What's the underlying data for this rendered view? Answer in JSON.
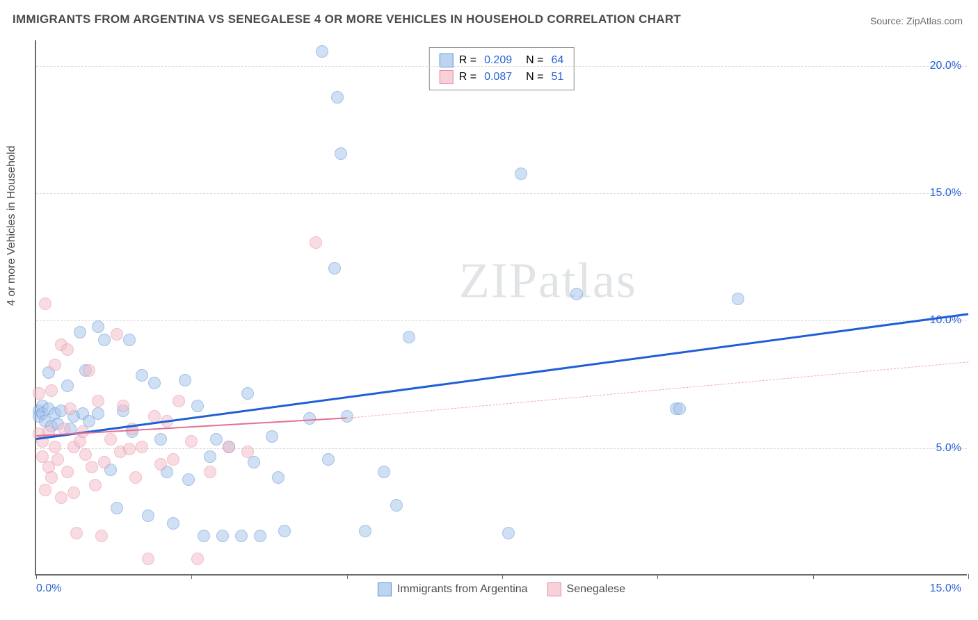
{
  "title": "IMMIGRANTS FROM ARGENTINA VS SENEGALESE 4 OR MORE VEHICLES IN HOUSEHOLD CORRELATION CHART",
  "source_label": "Source: ZipAtlas.com",
  "watermark": "ZIPatlas",
  "ylabel": "4 or more Vehicles in Household",
  "chart": {
    "type": "scatter",
    "background_color": "#ffffff",
    "grid_color": "#d8d8d8",
    "axis_color": "#6b6b6b",
    "text_color": "#4a4a4a",
    "tick_label_color": "#2962d9",
    "xlim": [
      0,
      15
    ],
    "ylim": [
      0,
      21
    ],
    "ytick_step": 5,
    "ytick_labels": [
      "5.0%",
      "10.0%",
      "15.0%",
      "20.0%"
    ],
    "xtick_positions": [
      0,
      2.5,
      5,
      7.5,
      10,
      12.5,
      15
    ],
    "xtick_labels_shown": {
      "left": "0.0%",
      "right": "15.0%"
    },
    "point_radius": 9,
    "point_opacity": 0.55,
    "series": [
      {
        "id": "argentina",
        "label": "Immigrants from Argentina",
        "color_fill": "#a8c5ec",
        "color_stroke": "#5a8fd6",
        "legend_swatch_fill": "#bcd4f0",
        "legend_swatch_border": "#5a8fd6",
        "r": "0.209",
        "n": "64",
        "trend": {
          "x1": 0,
          "y1": 5.4,
          "x2": 15,
          "y2": 10.3,
          "color": "#1e5fd6",
          "width": 3,
          "dashed": false
        },
        "points": [
          [
            0.05,
            6.4
          ],
          [
            0.05,
            6.2
          ],
          [
            0.1,
            6.6
          ],
          [
            0.1,
            6.3
          ],
          [
            0.15,
            6.0
          ],
          [
            0.2,
            7.9
          ],
          [
            0.2,
            6.5
          ],
          [
            0.25,
            5.8
          ],
          [
            0.3,
            6.3
          ],
          [
            0.35,
            5.9
          ],
          [
            0.4,
            6.4
          ],
          [
            0.5,
            7.4
          ],
          [
            0.55,
            5.7
          ],
          [
            0.6,
            6.2
          ],
          [
            0.7,
            9.5
          ],
          [
            0.75,
            6.3
          ],
          [
            0.8,
            8.0
          ],
          [
            0.85,
            6.0
          ],
          [
            1.0,
            9.7
          ],
          [
            1.0,
            6.3
          ],
          [
            1.1,
            9.2
          ],
          [
            1.2,
            4.1
          ],
          [
            1.3,
            2.6
          ],
          [
            1.4,
            6.4
          ],
          [
            1.5,
            9.2
          ],
          [
            1.55,
            5.6
          ],
          [
            1.7,
            7.8
          ],
          [
            1.8,
            2.3
          ],
          [
            1.9,
            7.5
          ],
          [
            2.0,
            5.3
          ],
          [
            2.1,
            4.0
          ],
          [
            2.2,
            2.0
          ],
          [
            2.4,
            7.6
          ],
          [
            2.45,
            3.7
          ],
          [
            2.6,
            6.6
          ],
          [
            2.7,
            1.5
          ],
          [
            2.8,
            4.6
          ],
          [
            2.9,
            5.3
          ],
          [
            3.0,
            1.5
          ],
          [
            3.1,
            5.0
          ],
          [
            3.3,
            1.5
          ],
          [
            3.4,
            7.1
          ],
          [
            3.5,
            4.4
          ],
          [
            3.6,
            1.5
          ],
          [
            3.8,
            5.4
          ],
          [
            3.9,
            3.8
          ],
          [
            4.0,
            1.7
          ],
          [
            4.4,
            6.1
          ],
          [
            4.6,
            20.5
          ],
          [
            4.7,
            4.5
          ],
          [
            4.8,
            12.0
          ],
          [
            4.85,
            18.7
          ],
          [
            4.9,
            16.5
          ],
          [
            5.0,
            6.2
          ],
          [
            5.3,
            1.7
          ],
          [
            5.6,
            4.0
          ],
          [
            5.8,
            2.7
          ],
          [
            6.0,
            9.3
          ],
          [
            7.6,
            1.6
          ],
          [
            7.8,
            15.7
          ],
          [
            8.7,
            11.0
          ],
          [
            10.3,
            6.5
          ],
          [
            10.35,
            6.5
          ],
          [
            11.3,
            10.8
          ]
        ]
      },
      {
        "id": "senegalese",
        "label": "Senegalese",
        "color_fill": "#f4c0cb",
        "color_stroke": "#e48aa0",
        "legend_swatch_fill": "#f7d0da",
        "legend_swatch_border": "#e48aa0",
        "r": "0.087",
        "n": "51",
        "trend": {
          "x1": 0,
          "y1": 5.5,
          "x2": 5.0,
          "y2": 6.2,
          "color": "#e36f91",
          "width": 2.5,
          "dashed": false,
          "ext_x2": 15,
          "ext_y2": 8.4,
          "ext_color": "#f0a8bb",
          "ext_dashed": true
        },
        "points": [
          [
            0.05,
            7.1
          ],
          [
            0.05,
            5.5
          ],
          [
            0.1,
            4.6
          ],
          [
            0.1,
            5.2
          ],
          [
            0.15,
            10.6
          ],
          [
            0.15,
            3.3
          ],
          [
            0.2,
            5.6
          ],
          [
            0.2,
            4.2
          ],
          [
            0.25,
            7.2
          ],
          [
            0.25,
            3.8
          ],
          [
            0.3,
            5.0
          ],
          [
            0.3,
            8.2
          ],
          [
            0.35,
            4.5
          ],
          [
            0.4,
            9.0
          ],
          [
            0.4,
            3.0
          ],
          [
            0.45,
            5.7
          ],
          [
            0.5,
            8.8
          ],
          [
            0.5,
            4.0
          ],
          [
            0.55,
            6.5
          ],
          [
            0.6,
            5.0
          ],
          [
            0.6,
            3.2
          ],
          [
            0.65,
            1.6
          ],
          [
            0.7,
            5.2
          ],
          [
            0.75,
            5.6
          ],
          [
            0.8,
            4.7
          ],
          [
            0.85,
            8.0
          ],
          [
            0.9,
            4.2
          ],
          [
            0.95,
            3.5
          ],
          [
            1.0,
            6.8
          ],
          [
            1.05,
            1.5
          ],
          [
            1.1,
            4.4
          ],
          [
            1.2,
            5.3
          ],
          [
            1.3,
            9.4
          ],
          [
            1.35,
            4.8
          ],
          [
            1.4,
            6.6
          ],
          [
            1.5,
            4.9
          ],
          [
            1.55,
            5.7
          ],
          [
            1.6,
            3.8
          ],
          [
            1.7,
            5.0
          ],
          [
            1.8,
            0.6
          ],
          [
            1.9,
            6.2
          ],
          [
            2.0,
            4.3
          ],
          [
            2.1,
            6.0
          ],
          [
            2.2,
            4.5
          ],
          [
            2.3,
            6.8
          ],
          [
            2.5,
            5.2
          ],
          [
            2.6,
            0.6
          ],
          [
            2.8,
            4.0
          ],
          [
            3.1,
            5.0
          ],
          [
            3.4,
            4.8
          ],
          [
            4.5,
            13.0
          ]
        ]
      }
    ]
  },
  "legend_top": {
    "r_label": "R =",
    "n_label": "N ="
  }
}
